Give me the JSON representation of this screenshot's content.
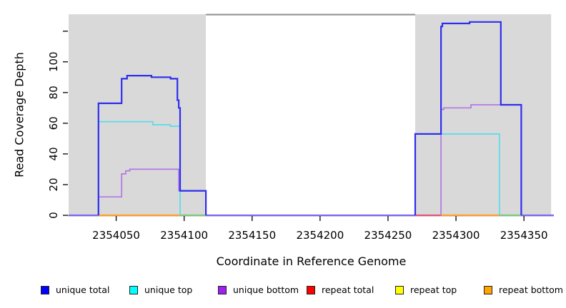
{
  "figure": {
    "background": "#ffffff"
  },
  "chart_data": {
    "type": "line",
    "step": true,
    "title": "",
    "xlabel": "Coordinate in Reference Genome",
    "ylabel": "Read Coverage Depth",
    "xlim": [
      2354015,
      2354372
    ],
    "ylim": [
      0,
      131
    ],
    "grid": false,
    "legend_position": "bottom",
    "xticks": [
      {
        "value": 2354050,
        "label": "2354050"
      },
      {
        "value": 2354100,
        "label": "2354100"
      },
      {
        "value": 2354150,
        "label": "2354150"
      },
      {
        "value": 2354200,
        "label": "2354200"
      },
      {
        "value": 2354250,
        "label": "2354250"
      },
      {
        "value": 2354300,
        "label": "2354300"
      },
      {
        "value": 2354350,
        "label": "2354350"
      }
    ],
    "yticks": [
      {
        "value": 0,
        "label": "0"
      },
      {
        "value": 20,
        "label": "20"
      },
      {
        "value": 40,
        "label": "40"
      },
      {
        "value": 60,
        "label": "60"
      },
      {
        "value": 80,
        "label": "80"
      },
      {
        "value": 100,
        "label": "100"
      },
      {
        "value": 120,
        "label": ""
      }
    ],
    "shaded_regions": [
      {
        "name": "unique-region-left",
        "from": 2354015,
        "to": 2354116
      },
      {
        "name": "unique-region-right",
        "from": 2354270,
        "to": 2354370
      }
    ],
    "shaded_fill": "#d9d9d9",
    "gap_top_line": {
      "from": 2354116,
      "to": 2354270,
      "color": "#8c8c8c"
    },
    "axis_color": "#000000",
    "series": [
      {
        "name": "unique total",
        "legend_color": "#0000ff",
        "line_color": "#2e2eee",
        "width": 2.2,
        "segments": [
          [
            [
              2354037,
              0
            ],
            [
              2354037,
              73
            ],
            [
              2354054,
              73
            ],
            [
              2354054,
              89
            ],
            [
              2354058,
              89
            ],
            [
              2354058,
              91
            ],
            [
              2354076,
              91
            ],
            [
              2354076,
              90
            ],
            [
              2354090,
              90
            ],
            [
              2354090,
              89
            ],
            [
              2354095,
              89
            ],
            [
              2354095,
              75
            ],
            [
              2354096,
              75
            ],
            [
              2354096,
              70
            ],
            [
              2354097,
              70
            ],
            [
              2354097,
              16
            ],
            [
              2354116,
              16
            ],
            [
              2354116,
              0
            ]
          ],
          [
            [
              2354270,
              0
            ],
            [
              2354270,
              53
            ],
            [
              2354289,
              53
            ],
            [
              2354289,
              123
            ],
            [
              2354290,
              123
            ],
            [
              2354290,
              125
            ],
            [
              2354310,
              125
            ],
            [
              2354310,
              126
            ],
            [
              2354333,
              126
            ],
            [
              2354333,
              72
            ],
            [
              2354348,
              72
            ],
            [
              2354348,
              0
            ]
          ]
        ]
      },
      {
        "name": "unique top",
        "legend_color": "#00ffff",
        "line_color": "#55dcec",
        "width": 1.7,
        "segments": [
          [
            [
              2354037,
              0
            ],
            [
              2354037,
              61
            ],
            [
              2354077,
              61
            ],
            [
              2354077,
              59
            ],
            [
              2354090,
              59
            ],
            [
              2354090,
              58
            ],
            [
              2354097,
              58
            ],
            [
              2354097,
              0
            ]
          ],
          [
            [
              2354270,
              0
            ],
            [
              2354270,
              53
            ],
            [
              2354332,
              53
            ],
            [
              2354332,
              0
            ]
          ]
        ]
      },
      {
        "name": "unique bottom",
        "legend_color": "#a020f0",
        "line_color": "#b277e6",
        "width": 1.7,
        "segments": [
          [
            [
              2354037,
              0
            ],
            [
              2354037,
              12
            ],
            [
              2354054,
              12
            ],
            [
              2354054,
              27
            ],
            [
              2354057,
              27
            ],
            [
              2354057,
              29
            ],
            [
              2354060,
              29
            ],
            [
              2354060,
              30
            ],
            [
              2354096,
              30
            ],
            [
              2354096,
              16
            ],
            [
              2354116,
              16
            ],
            [
              2354116,
              0
            ]
          ],
          [
            [
              2354289,
              0
            ],
            [
              2354289,
              69
            ],
            [
              2354291,
              69
            ],
            [
              2354291,
              70
            ],
            [
              2354311,
              70
            ],
            [
              2354311,
              72
            ],
            [
              2354348,
              72
            ],
            [
              2354348,
              0
            ]
          ]
        ]
      },
      {
        "name": "repeat total",
        "legend_color": "#ff0000",
        "line_color": "#e0557d",
        "width": 2.2,
        "segments": [
          [
            [
              2354270,
              0
            ],
            [
              2354289,
              0
            ]
          ]
        ]
      },
      {
        "name": "repeat top",
        "legend_color": "#ffff00",
        "line_color": "#f5ee55",
        "width": 2.2,
        "segments": []
      },
      {
        "name": "repeat bottom",
        "legend_color": "#ffa500",
        "line_color": "#ff9d26",
        "width": 2.2,
        "segments": [
          [
            [
              2354037,
              0
            ],
            [
              2354097,
              0
            ]
          ],
          [
            [
              2354289,
              0
            ],
            [
              2354332,
              0
            ]
          ]
        ]
      }
    ],
    "baseline_segments": [
      {
        "name": "unique-lines-at-zero",
        "color": "#7a68ee",
        "from": 2354015,
        "to": 2354037
      },
      {
        "name": "unique-lines-at-zero",
        "color": "#7a68ee",
        "from": 2354116,
        "to": 2354270
      },
      {
        "name": "unique-lines-at-zero",
        "color": "#7a68ee",
        "from": 2354348,
        "to": 2354372
      },
      {
        "name": "unique-top-zero-over-repeat-bottom",
        "color": "#7dc87d",
        "from": 2354097,
        "to": 2354116
      },
      {
        "name": "unique-top-zero-over-repeat-bottom",
        "color": "#7dc87d",
        "from": 2354332,
        "to": 2354348
      }
    ]
  }
}
